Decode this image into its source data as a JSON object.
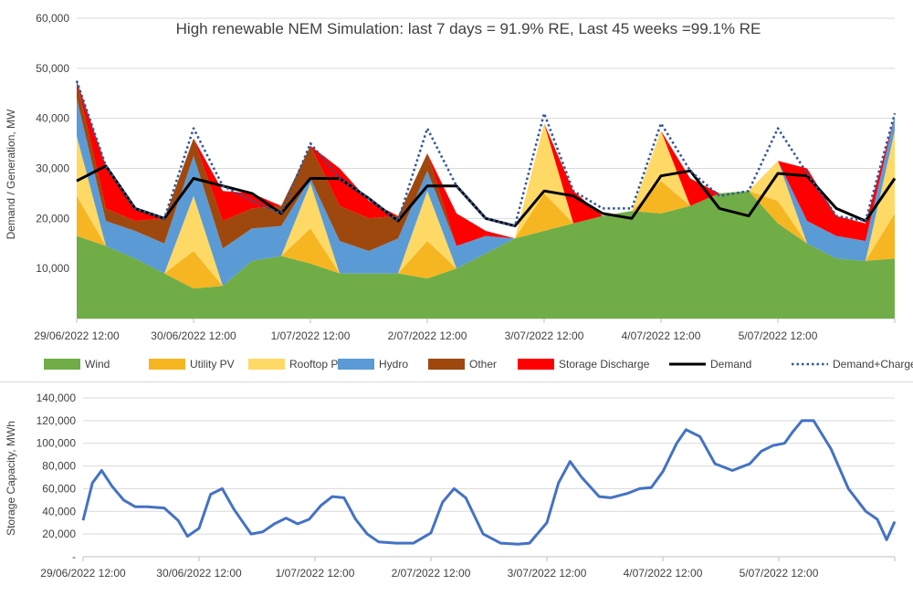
{
  "colors": {
    "wind": "#70ad47",
    "utility_pv": "#f5b622",
    "rooftop_pv": "#ffd966",
    "hydro": "#5b9bd5",
    "other": "#9e480e",
    "storage_discharge": "#ff0000",
    "demand": "#000000",
    "demand_charge": "#2f5597",
    "storage_line": "#4472c4",
    "grid": "#d9d9d9"
  },
  "chart_data": [
    {
      "type": "area",
      "title": "High renewable NEM Simulation: last 7 days = 91.9% RE, Last 45 weeks =99.1% RE",
      "xlabel": "",
      "ylabel": "Demand / Generation, MW",
      "ylim": [
        0,
        60000
      ],
      "yticks": [
        0,
        10000,
        20000,
        30000,
        40000,
        50000,
        60000
      ],
      "ytick_labels": [
        "",
        "10,000",
        "20,000",
        "30,000",
        "40,000",
        "50,000",
        "60,000"
      ],
      "xlim": [
        0,
        7
      ],
      "xticks": [
        0,
        1,
        2,
        3,
        4,
        5,
        6,
        7
      ],
      "xtick_labels": [
        "29/06/2022 12:00",
        "30/06/2022 12:00",
        "1/07/2022 12:00",
        "2/07/2022 12:00",
        "3/07/2022 12:00",
        "4/07/2022 12:00",
        "5/07/2022 12:00",
        ""
      ],
      "grid": true,
      "legend_position": "bottom",
      "x": [
        0,
        0.25,
        0.5,
        0.75,
        1,
        1.25,
        1.5,
        1.75,
        2,
        2.25,
        2.5,
        2.75,
        3,
        3.25,
        3.5,
        3.75,
        4,
        4.25,
        4.5,
        4.75,
        5,
        5.25,
        5.5,
        5.75,
        6,
        6.25,
        6.5,
        6.75,
        7
      ],
      "stacked_series": [
        {
          "name": "Wind",
          "color_key": "wind",
          "values": [
            16500,
            14500,
            12000,
            9000,
            6000,
            6500,
            11500,
            12500,
            11000,
            9000,
            9000,
            9000,
            8000,
            10000,
            13000,
            16000,
            17500,
            19000,
            20500,
            21500,
            21000,
            22500,
            25000,
            25500,
            19000,
            15000,
            12000,
            11500,
            12000
          ]
        },
        {
          "name": "Utility PV",
          "color_key": "utility_pv",
          "values": [
            8000,
            0,
            0,
            0,
            7500,
            0,
            0,
            0,
            7000,
            0,
            0,
            0,
            7500,
            0,
            0,
            0,
            7500,
            0,
            0,
            0,
            6500,
            0,
            0,
            0,
            4500,
            0,
            0,
            0,
            9000
          ]
        },
        {
          "name": "Rooftop PV",
          "color_key": "rooftop_pv",
          "values": [
            12000,
            0,
            0,
            0,
            11000,
            0,
            0,
            0,
            9000,
            0,
            0,
            0,
            10000,
            0,
            0,
            0,
            14000,
            0,
            0,
            0,
            10000,
            0,
            0,
            0,
            8000,
            0,
            0,
            0,
            16500
          ]
        },
        {
          "name": "Hydro",
          "color_key": "hydro",
          "values": [
            7500,
            5000,
            5500,
            6000,
            8000,
            7500,
            6500,
            6000,
            1000,
            6500,
            4500,
            7000,
            4000,
            4500,
            3500,
            0,
            0,
            0,
            0,
            0,
            0,
            0,
            0,
            0,
            0,
            4500,
            4500,
            4000,
            3000
          ]
        },
        {
          "name": "Other",
          "color_key": "other",
          "values": [
            3500,
            2500,
            2000,
            5000,
            3500,
            5500,
            4000,
            4000,
            6500,
            7000,
            6500,
            4500,
            3500,
            0,
            0,
            0,
            0,
            0,
            0,
            0,
            0,
            0,
            0,
            0,
            0,
            0,
            0,
            0,
            0
          ]
        },
        {
          "name": "Storage Discharge",
          "color_key": "storage_discharge",
          "values": [
            0,
            8500,
            2500,
            0,
            0,
            6000,
            3000,
            0,
            0,
            7500,
            3500,
            0,
            0,
            6500,
            1000,
            0,
            0,
            6500,
            0,
            0,
            0,
            5500,
            0,
            0,
            0,
            10500,
            4000,
            3500,
            0
          ]
        }
      ],
      "line_series": [
        {
          "name": "Demand",
          "color_key": "demand",
          "style": "solid",
          "values": [
            27500,
            30500,
            22000,
            20000,
            28000,
            26500,
            25000,
            21000,
            28000,
            28000,
            24000,
            19500,
            26500,
            26500,
            20000,
            18500,
            25500,
            24500,
            21000,
            20000,
            28500,
            29500,
            22000,
            20500,
            29000,
            28500,
            22000,
            19500,
            28000
          ]
        },
        {
          "name": "Demand+Charge",
          "color_key": "demand_charge",
          "style": "dotted",
          "values": [
            47500,
            30500,
            22000,
            20000,
            38000,
            26500,
            23500,
            21000,
            35000,
            28000,
            24000,
            19500,
            38000,
            26500,
            20000,
            18500,
            41000,
            25500,
            22000,
            22000,
            39000,
            29500,
            24500,
            25500,
            38000,
            29000,
            20500,
            19500,
            41000
          ]
        }
      ]
    },
    {
      "type": "line",
      "title": "",
      "xlabel": "",
      "ylabel": "Storage Capacity, MWh",
      "ylim": [
        0,
        140000
      ],
      "yticks": [
        0,
        20000,
        40000,
        60000,
        80000,
        100000,
        120000,
        140000
      ],
      "ytick_labels": [
        "-",
        "20,000",
        "40,000",
        "60,000",
        "80,000",
        "100,000",
        "120,000",
        "140,000"
      ],
      "xlim": [
        0,
        7
      ],
      "xticks": [
        0,
        1,
        2,
        3,
        4,
        5,
        6,
        7
      ],
      "xtick_labels": [
        "29/06/2022 12:00",
        "30/06/2022 12:00",
        "1/07/2022 12:00",
        "2/07/2022 12:00",
        "3/07/2022 12:00",
        "4/07/2022 12:00",
        "5/07/2022 12:00",
        ""
      ],
      "grid": true,
      "legend_position": "none",
      "x": [
        0,
        0.08,
        0.16,
        0.25,
        0.35,
        0.45,
        0.55,
        0.7,
        0.82,
        0.9,
        1.0,
        1.1,
        1.2,
        1.3,
        1.45,
        1.55,
        1.65,
        1.75,
        1.85,
        1.95,
        2.05,
        2.15,
        2.25,
        2.35,
        2.45,
        2.55,
        2.7,
        2.85,
        3.0,
        3.1,
        3.2,
        3.3,
        3.45,
        3.6,
        3.75,
        3.85,
        4.0,
        4.1,
        4.2,
        4.3,
        4.45,
        4.55,
        4.7,
        4.8,
        4.9,
        5.0,
        5.12,
        5.2,
        5.32,
        5.45,
        5.6,
        5.75,
        5.85,
        5.95,
        6.05,
        6.12,
        6.2,
        6.3,
        6.45,
        6.6,
        6.75,
        6.85,
        6.93,
        7.0
      ],
      "series": [
        {
          "name": "",
          "color_key": "storage_line",
          "values": [
            32000,
            65000,
            76000,
            62000,
            50000,
            44000,
            44000,
            43000,
            32000,
            18000,
            25000,
            55000,
            60000,
            42000,
            20000,
            22000,
            29000,
            34000,
            29000,
            33000,
            45000,
            53000,
            52000,
            33000,
            20000,
            13000,
            12000,
            12000,
            21000,
            48000,
            60000,
            52000,
            20000,
            12000,
            11000,
            12000,
            30000,
            65000,
            84000,
            70000,
            53000,
            52000,
            56000,
            60000,
            61000,
            75000,
            100000,
            112000,
            106000,
            82000,
            76000,
            82000,
            93000,
            98000,
            100000,
            110000,
            120000,
            120000,
            95000,
            60000,
            40000,
            33000,
            15000,
            31000
          ]
        }
      ]
    }
  ]
}
